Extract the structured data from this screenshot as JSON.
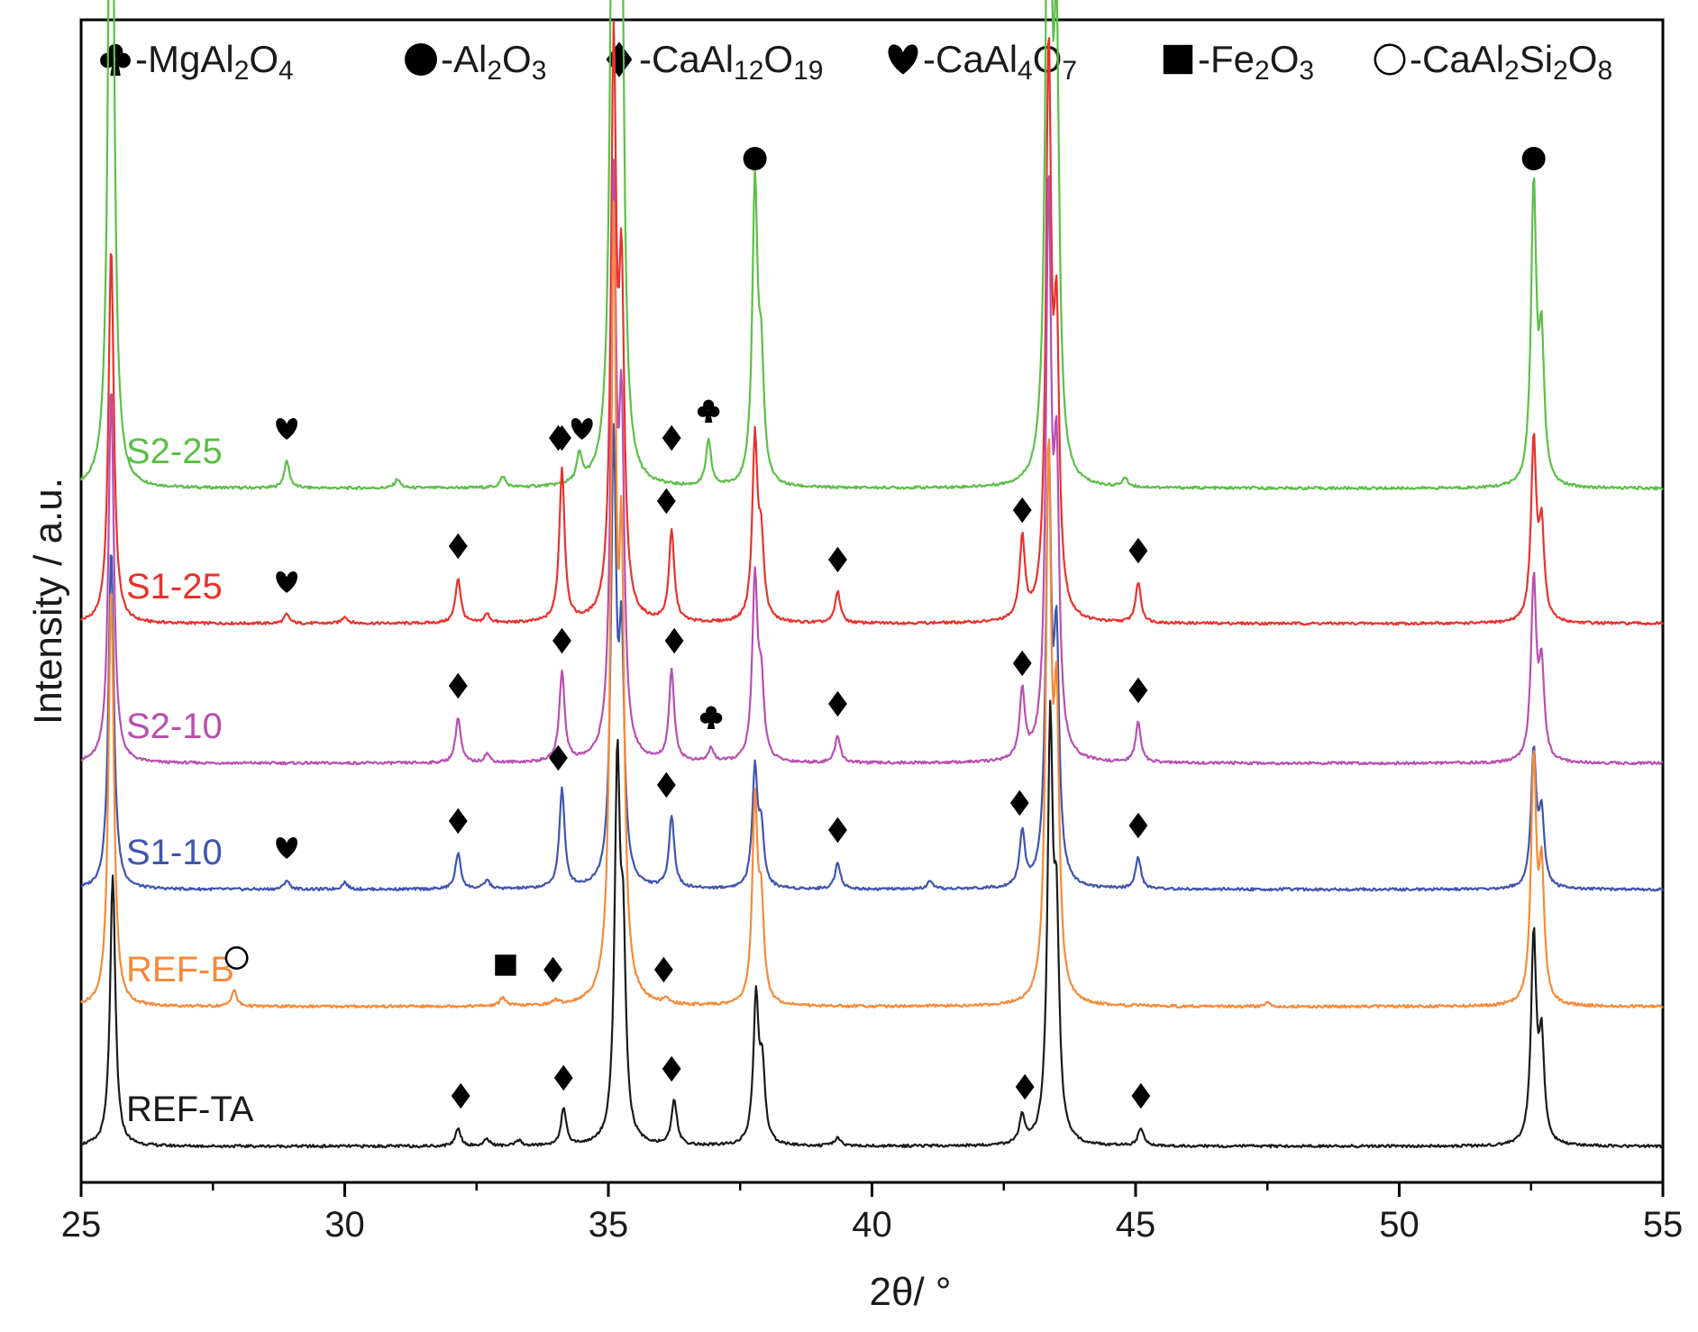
{
  "chart_data": {
    "type": "line",
    "xlabel": "2θ/ °",
    "ylabel": "Intensity / a.u.",
    "xlim": [
      25,
      55
    ],
    "x_ticks": [
      25,
      30,
      35,
      40,
      45,
      50,
      55
    ],
    "y_axis_values": "none (offset stacked patterns, arbitrary units)",
    "grid": false,
    "legend_position": "top, inside plot frame",
    "legend": [
      {
        "symbol": "club",
        "label": "-MgAl2O4",
        "parts": [
          [
            "-MgAl",
            ""
          ],
          [
            "2",
            "sub"
          ],
          [
            "O",
            ""
          ],
          [
            "4",
            "sub"
          ]
        ]
      },
      {
        "symbol": "circle-filled",
        "label": "-Al2O3",
        "parts": [
          [
            "-Al",
            ""
          ],
          [
            "2",
            "sub"
          ],
          [
            "O",
            ""
          ],
          [
            "3",
            "sub"
          ]
        ]
      },
      {
        "symbol": "diamond",
        "label": "-CaAl12O19",
        "parts": [
          [
            "-CaAl",
            ""
          ],
          [
            "12",
            "sub"
          ],
          [
            "O",
            ""
          ],
          [
            "19",
            "sub"
          ]
        ]
      },
      {
        "symbol": "heart",
        "label": "-CaAl4O7",
        "parts": [
          [
            "-CaAl",
            ""
          ],
          [
            "4",
            "sub"
          ],
          [
            "O",
            ""
          ],
          [
            "7",
            "sub"
          ]
        ]
      },
      {
        "symbol": "square",
        "label": "-Fe2O3",
        "parts": [
          [
            "-Fe",
            ""
          ],
          [
            "2",
            "sub"
          ],
          [
            "O",
            ""
          ],
          [
            "3",
            "sub"
          ]
        ]
      },
      {
        "symbol": "circle-open",
        "label": "-CaAl2Si2O8",
        "parts": [
          [
            "-CaAl",
            ""
          ],
          [
            "2",
            "sub"
          ],
          [
            "Si",
            ""
          ],
          [
            "2",
            "sub"
          ],
          [
            "O",
            ""
          ],
          [
            "8",
            "sub"
          ]
        ]
      }
    ],
    "series": [
      {
        "name": "S2-25",
        "color": "#5cbf48",
        "baseline": 0.73,
        "peaks": [
          [
            25.57,
            0.95
          ],
          [
            35.1,
            1.0
          ],
          [
            35.25,
            0.55
          ],
          [
            37.78,
            0.33
          ],
          [
            37.9,
            0.12
          ],
          [
            43.35,
            0.88
          ],
          [
            43.5,
            0.45
          ],
          [
            52.55,
            0.33
          ],
          [
            52.7,
            0.15
          ],
          [
            28.9,
            0.03
          ],
          [
            34.45,
            0.03
          ],
          [
            36.9,
            0.05
          ],
          [
            31.0,
            0.01
          ],
          [
            33.0,
            0.012
          ],
          [
            44.8,
            0.01
          ]
        ],
        "markers": [
          {
            "x": 25.57,
            "peak": 0.95,
            "symbol": "circle-filled"
          },
          {
            "x": 28.9,
            "peak": 0.03,
            "symbol": "heart"
          },
          {
            "x": 34.05,
            "peak": 0.02,
            "symbol": "diamond"
          },
          {
            "x": 34.5,
            "peak": 0.03,
            "symbol": "heart"
          },
          {
            "x": 36.2,
            "peak": 0.02,
            "symbol": "diamond"
          },
          {
            "x": 36.9,
            "peak": 0.05,
            "symbol": "club"
          },
          {
            "x": 35.08,
            "peak": 1.0,
            "symbol": "circle-filled"
          },
          {
            "x": 37.78,
            "peak": 0.33,
            "symbol": "circle-filled"
          },
          {
            "x": 43.35,
            "peak": 0.88,
            "symbol": "circle-filled"
          },
          {
            "x": 52.55,
            "peak": 0.33,
            "symbol": "circle-filled"
          }
        ]
      },
      {
        "name": "S1-25",
        "color": "#e8322c",
        "baseline": 0.58,
        "peaks": [
          [
            25.57,
            0.42
          ],
          [
            35.1,
            0.62
          ],
          [
            35.25,
            0.35
          ],
          [
            37.78,
            0.2
          ],
          [
            37.9,
            0.08
          ],
          [
            43.35,
            0.62
          ],
          [
            43.5,
            0.3
          ],
          [
            52.55,
            0.2
          ],
          [
            52.7,
            0.1
          ],
          [
            32.15,
            0.05
          ],
          [
            34.12,
            0.17
          ],
          [
            36.2,
            0.1
          ],
          [
            39.35,
            0.035
          ],
          [
            42.85,
            0.09
          ],
          [
            45.05,
            0.045
          ],
          [
            28.9,
            0.01
          ],
          [
            30.0,
            0.008
          ],
          [
            32.7,
            0.01
          ]
        ],
        "markers": [
          {
            "x": 28.9,
            "peak": 0.01,
            "symbol": "heart"
          },
          {
            "x": 32.15,
            "peak": 0.05,
            "symbol": "diamond"
          },
          {
            "x": 34.12,
            "peak": 0.17,
            "symbol": "diamond"
          },
          {
            "x": 36.1,
            "peak": 0.1,
            "symbol": "diamond"
          },
          {
            "x": 39.35,
            "peak": 0.035,
            "symbol": "diamond"
          },
          {
            "x": 42.85,
            "peak": 0.09,
            "symbol": "diamond"
          },
          {
            "x": 45.05,
            "peak": 0.045,
            "symbol": "diamond"
          }
        ]
      },
      {
        "name": "S2-10",
        "color": "#b84fb0",
        "baseline": 0.425,
        "peaks": [
          [
            25.57,
            0.42
          ],
          [
            35.1,
            0.62
          ],
          [
            35.25,
            0.35
          ],
          [
            37.78,
            0.2
          ],
          [
            37.9,
            0.08
          ],
          [
            43.35,
            0.62
          ],
          [
            43.5,
            0.3
          ],
          [
            52.55,
            0.2
          ],
          [
            52.7,
            0.1
          ],
          [
            32.15,
            0.05
          ],
          [
            34.12,
            0.1
          ],
          [
            36.2,
            0.1
          ],
          [
            39.35,
            0.03
          ],
          [
            42.85,
            0.075
          ],
          [
            45.05,
            0.045
          ],
          [
            36.95,
            0.015
          ],
          [
            32.7,
            0.01
          ]
        ],
        "markers": [
          {
            "x": 32.15,
            "peak": 0.05,
            "symbol": "diamond"
          },
          {
            "x": 34.12,
            "peak": 0.1,
            "symbol": "diamond"
          },
          {
            "x": 36.25,
            "peak": 0.1,
            "symbol": "diamond"
          },
          {
            "x": 36.95,
            "peak": 0.015,
            "symbol": "club"
          },
          {
            "x": 39.35,
            "peak": 0.03,
            "symbol": "diamond"
          },
          {
            "x": 42.85,
            "peak": 0.075,
            "symbol": "diamond"
          },
          {
            "x": 45.05,
            "peak": 0.045,
            "symbol": "diamond"
          }
        ]
      },
      {
        "name": "S1-10",
        "color": "#3f55b0",
        "baseline": 0.285,
        "peaks": [
          [
            25.57,
            0.38
          ],
          [
            35.1,
            0.48
          ],
          [
            35.25,
            0.25
          ],
          [
            37.78,
            0.13
          ],
          [
            37.9,
            0.06
          ],
          [
            43.35,
            0.47
          ],
          [
            43.5,
            0.25
          ],
          [
            52.55,
            0.15
          ],
          [
            52.7,
            0.08
          ],
          [
            32.15,
            0.04
          ],
          [
            34.12,
            0.11
          ],
          [
            36.2,
            0.08
          ],
          [
            39.35,
            0.03
          ],
          [
            42.85,
            0.06
          ],
          [
            45.05,
            0.035
          ],
          [
            28.9,
            0.01
          ],
          [
            30.0,
            0.008
          ],
          [
            32.7,
            0.01
          ],
          [
            41.1,
            0.008
          ]
        ],
        "markers": [
          {
            "x": 28.9,
            "peak": 0.01,
            "symbol": "heart"
          },
          {
            "x": 32.15,
            "peak": 0.04,
            "symbol": "diamond"
          },
          {
            "x": 34.05,
            "peak": 0.11,
            "symbol": "diamond"
          },
          {
            "x": 36.1,
            "peak": 0.08,
            "symbol": "diamond"
          },
          {
            "x": 39.35,
            "peak": 0.03,
            "symbol": "diamond"
          },
          {
            "x": 42.8,
            "peak": 0.06,
            "symbol": "diamond"
          },
          {
            "x": 45.05,
            "peak": 0.035,
            "symbol": "diamond"
          }
        ]
      },
      {
        "name": "REF-B",
        "color": "#f58a3a",
        "baseline": 0.155,
        "peaks": [
          [
            25.57,
            0.47
          ],
          [
            35.1,
            0.83
          ],
          [
            35.25,
            0.45
          ],
          [
            37.78,
            0.22
          ],
          [
            37.9,
            0.1
          ],
          [
            43.35,
            0.6
          ],
          [
            43.5,
            0.3
          ],
          [
            52.55,
            0.27
          ],
          [
            52.7,
            0.14
          ],
          [
            27.9,
            0.018
          ],
          [
            33.0,
            0.01
          ],
          [
            34.0,
            0.005
          ],
          [
            36.1,
            0.005
          ],
          [
            47.5,
            0.004
          ]
        ],
        "markers": [
          {
            "x": 27.95,
            "peak": 0.018,
            "symbol": "circle-open"
          },
          {
            "x": 33.05,
            "peak": 0.01,
            "symbol": "square"
          },
          {
            "x": 33.95,
            "peak": 0.005,
            "symbol": "diamond"
          },
          {
            "x": 36.05,
            "peak": 0.005,
            "symbol": "diamond"
          }
        ]
      },
      {
        "name": "REF-TA",
        "color": "#1a1a1a",
        "baseline": 0.0,
        "peaks": [
          [
            25.6,
            0.3
          ],
          [
            35.17,
            0.41
          ],
          [
            35.28,
            0.2
          ],
          [
            37.8,
            0.16
          ],
          [
            37.92,
            0.08
          ],
          [
            43.38,
            0.45
          ],
          [
            43.5,
            0.22
          ],
          [
            52.55,
            0.23
          ],
          [
            52.7,
            0.11
          ],
          [
            32.15,
            0.02
          ],
          [
            34.15,
            0.04
          ],
          [
            36.25,
            0.05
          ],
          [
            42.85,
            0.03
          ],
          [
            45.1,
            0.02
          ],
          [
            39.35,
            0.01
          ],
          [
            32.7,
            0.008
          ],
          [
            33.3,
            0.006
          ]
        ],
        "markers": [
          {
            "x": 32.2,
            "peak": 0.02,
            "symbol": "diamond"
          },
          {
            "x": 34.15,
            "peak": 0.04,
            "symbol": "diamond"
          },
          {
            "x": 36.2,
            "peak": 0.05,
            "symbol": "diamond"
          },
          {
            "x": 42.9,
            "peak": 0.03,
            "symbol": "diamond"
          },
          {
            "x": 45.1,
            "peak": 0.02,
            "symbol": "diamond"
          }
        ]
      }
    ]
  }
}
